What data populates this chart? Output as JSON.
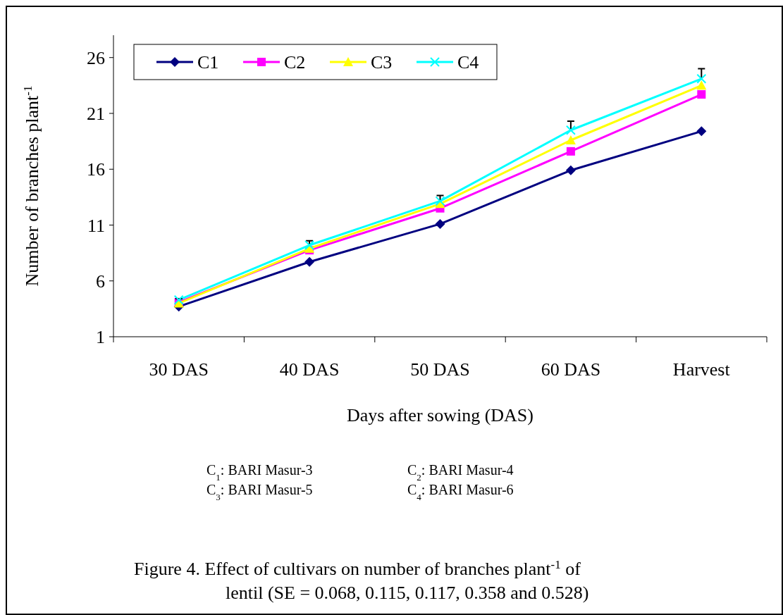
{
  "chart_data": {
    "type": "line",
    "xlabel": "Days after sowing (DAS)",
    "ylabel": "Number of branches plant$^{-1}$",
    "categories": [
      "30 DAS",
      "40 DAS",
      "50 DAS",
      "60 DAS",
      "Harvest"
    ],
    "ylim": [
      1,
      28
    ],
    "yticks": [
      1,
      6,
      11,
      16,
      21,
      26
    ],
    "grid": false,
    "legend": "top left",
    "line_style": "solid",
    "series": [
      {
        "name": "C1",
        "color": "#000080",
        "marker": "diamond",
        "values": [
          3.7,
          7.7,
          11.1,
          15.9,
          19.4
        ]
      },
      {
        "name": "C2",
        "color": "#ff00ff",
        "marker": "square",
        "values": [
          4.1,
          8.75,
          12.5,
          17.6,
          22.7
        ]
      },
      {
        "name": "C3",
        "color": "#ffff00",
        "marker": "triangle",
        "values": [
          4.0,
          8.9,
          12.9,
          18.6,
          23.5
        ]
      },
      {
        "name": "C4",
        "color": "#00ffff",
        "marker": "cross",
        "values": [
          4.3,
          9.2,
          13.15,
          19.5,
          24.1
        ],
        "errors": [
          [
            4.3,
            4.4
          ],
          [
            9.2,
            9.6
          ],
          [
            13.15,
            13.65
          ],
          [
            19.5,
            20.3
          ],
          [
            24.1,
            25.0
          ]
        ]
      }
    ],
    "annotations": [
      "C$_{1}$: BARI Masur-3",
      "C$_{2}$: BARI Masur-4",
      "C$_{3}$: BARI Masur-5",
      "C$_{4}$: BARI Masur-6",
      "Figure 4. Effect of cultivars on number of branches plant$^{-1}$ of",
      "lentil (SE = 0.068, 0.115, 0.117, 0.358 and 0.528)"
    ]
  }
}
